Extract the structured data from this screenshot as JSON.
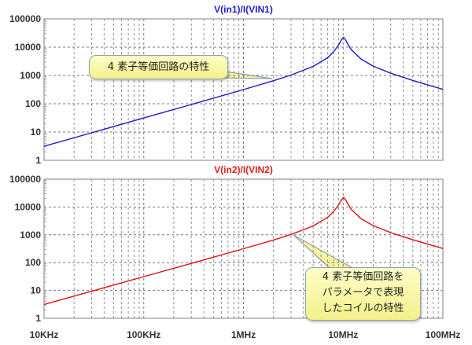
{
  "chart_data": [
    {
      "type": "line",
      "title": "V(in1)/I(VIN1)",
      "title_color": "#2020d0",
      "line_color": "#1a1acc",
      "xscale": "log",
      "yscale": "log",
      "xlim": [
        10000,
        100000000
      ],
      "ylim": [
        1,
        100000
      ],
      "grid": true,
      "yticks": [
        {
          "v": 100000,
          "label": "100000"
        },
        {
          "v": 10000,
          "label": "10000"
        },
        {
          "v": 1000,
          "label": "1000"
        },
        {
          "v": 100,
          "label": "100"
        },
        {
          "v": 10,
          "label": "10"
        },
        {
          "v": 1,
          "label": "1"
        }
      ],
      "points": [
        [
          10000,
          3.14
        ],
        [
          30000,
          9.4
        ],
        [
          100000,
          31.4
        ],
        [
          300000,
          94
        ],
        [
          1000000,
          317
        ],
        [
          2000000,
          650
        ],
        [
          3000000,
          1030
        ],
        [
          5000000,
          2090
        ],
        [
          7000000,
          4255
        ],
        [
          8000000,
          6810
        ],
        [
          9000000,
          11850
        ],
        [
          9500000,
          17080
        ],
        [
          10070000,
          22000
        ],
        [
          10500000,
          19000
        ],
        [
          11000000,
          13900
        ],
        [
          12000000,
          8310
        ],
        [
          15000000,
          3866
        ],
        [
          20000000,
          2137
        ],
        [
          30000000,
          1197
        ],
        [
          50000000,
          664
        ],
        [
          100000000,
          322
        ]
      ],
      "annotation": "4 素子等価回路の特性"
    },
    {
      "type": "line",
      "title": "V(in2)/I(VIN2)",
      "title_color": "#e02020",
      "line_color": "#dd1111",
      "xscale": "log",
      "yscale": "log",
      "xlim": [
        10000,
        100000000
      ],
      "ylim": [
        1,
        100000
      ],
      "grid": true,
      "yticks": [
        {
          "v": 100000,
          "label": "100000"
        },
        {
          "v": 10000,
          "label": "10000"
        },
        {
          "v": 1000,
          "label": "1000"
        },
        {
          "v": 100,
          "label": "100"
        },
        {
          "v": 10,
          "label": "10"
        },
        {
          "v": 1,
          "label": "1"
        }
      ],
      "xticks": [
        {
          "v": 10000,
          "label": "10KHz"
        },
        {
          "v": 100000,
          "label": "100KHz"
        },
        {
          "v": 1000000,
          "label": "1MHz"
        },
        {
          "v": 10000000,
          "label": "10MHz"
        },
        {
          "v": 100000000,
          "label": "100MHz"
        }
      ],
      "points": [
        [
          10000,
          3.14
        ],
        [
          30000,
          9.4
        ],
        [
          100000,
          31.4
        ],
        [
          300000,
          94
        ],
        [
          1000000,
          317
        ],
        [
          2000000,
          650
        ],
        [
          3000000,
          1030
        ],
        [
          5000000,
          2090
        ],
        [
          7000000,
          4255
        ],
        [
          8000000,
          6810
        ],
        [
          9000000,
          11850
        ],
        [
          9500000,
          17080
        ],
        [
          10070000,
          22000
        ],
        [
          10500000,
          19000
        ],
        [
          11000000,
          13900
        ],
        [
          12000000,
          8310
        ],
        [
          15000000,
          3866
        ],
        [
          20000000,
          2137
        ],
        [
          30000000,
          1197
        ],
        [
          50000000,
          664
        ],
        [
          100000000,
          322
        ]
      ],
      "annotation_lines": [
        "4 素子等価回路を",
        "パラメータで表現",
        "したコイルの特性"
      ]
    }
  ]
}
